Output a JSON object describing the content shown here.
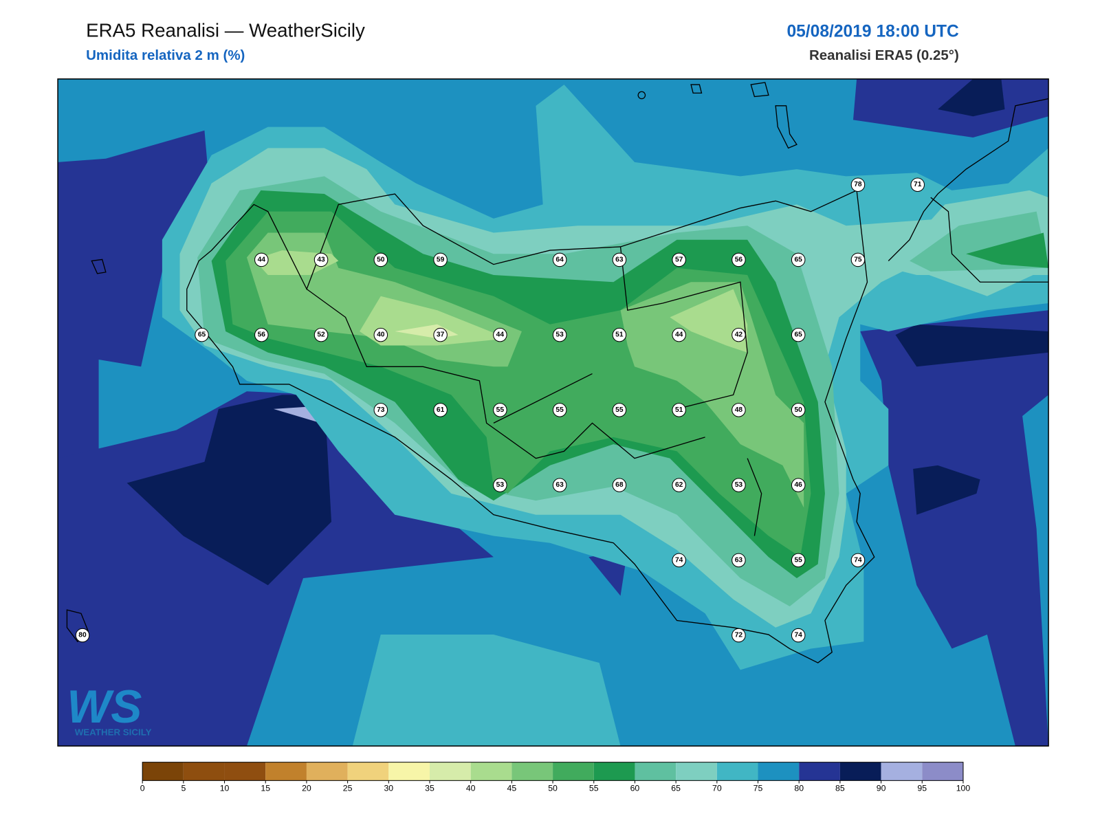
{
  "header": {
    "title": "ERA5 Reanalisi — WeatherSicily",
    "subtitle": "Umidita relativa 2 m (%)",
    "datetime": "05/08/2019 18:00 UTC",
    "source": "Reanalisi ERA5 (0.25°)"
  },
  "stations": {
    "rows": [
      [
        null,
        null,
        null,
        null,
        null,
        null,
        null,
        null,
        null,
        null,
        null,
        null,
        null,
        78,
        71
      ],
      [
        null,
        null,
        null,
        44,
        43,
        50,
        59,
        null,
        64,
        63,
        57,
        56,
        65,
        75,
        null
      ],
      [
        null,
        null,
        65,
        56,
        52,
        40,
        37,
        44,
        53,
        51,
        44,
        42,
        65,
        null,
        null
      ],
      [
        null,
        null,
        null,
        null,
        null,
        73,
        61,
        55,
        55,
        55,
        51,
        48,
        50,
        null,
        null
      ],
      [
        null,
        null,
        null,
        null,
        null,
        null,
        null,
        53,
        63,
        68,
        62,
        53,
        46,
        null,
        null
      ],
      [
        null,
        null,
        null,
        null,
        null,
        null,
        null,
        null,
        null,
        null,
        74,
        63,
        55,
        74,
        null
      ],
      [
        80,
        null,
        null,
        null,
        null,
        null,
        null,
        null,
        null,
        null,
        null,
        72,
        74,
        null,
        null
      ]
    ]
  },
  "colorbar": {
    "ticks": [
      0,
      5,
      10,
      15,
      20,
      25,
      30,
      35,
      40,
      45,
      50,
      55,
      60,
      65,
      70,
      75,
      80,
      85,
      90,
      95,
      100
    ],
    "colors": [
      "#7b4408",
      "#8e4e0f",
      "#8f4e10",
      "#c1812c",
      "#e0b05c",
      "#f0d27c",
      "#f7f5a8",
      "#d6ecaa",
      "#a9dc8e",
      "#78c679",
      "#41ab5d",
      "#1d9a50",
      "#5fc0a0",
      "#7ecfc0",
      "#41b6c4",
      "#1d91c0",
      "#253494",
      "#081d58",
      "#a5b0e0",
      "#8c8cc8"
    ]
  },
  "logo": {
    "mark": "WS",
    "text": "WEATHER SICILY"
  }
}
